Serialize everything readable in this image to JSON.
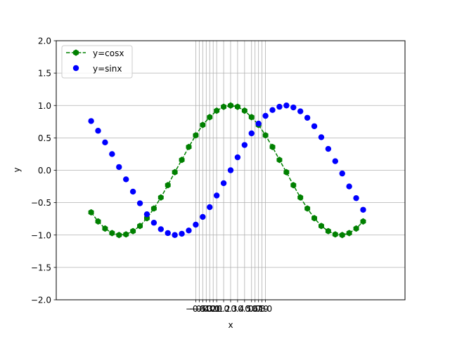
{
  "chart_data": {
    "type": "line",
    "xlabel": "x",
    "ylabel": "y",
    "xlim": [
      -2.5,
      2.5
    ],
    "ylim": [
      -2.0,
      2.0
    ],
    "yticks": [
      -2.0,
      -1.5,
      -1.0,
      -0.5,
      0.0,
      0.5,
      1.0,
      1.5,
      2.0
    ],
    "ytick_labels": [
      "−2.0",
      "−1.5",
      "−1.0",
      "−0.5",
      "0.0",
      "0.5",
      "1.0",
      "1.5",
      "2.0"
    ],
    "xticks": [
      -0.5,
      -0.45,
      -0.4,
      -0.35,
      -0.3,
      -0.25,
      -0.2,
      -0.1,
      0.0,
      0.1,
      0.2,
      0.3,
      0.35,
      0.4,
      0.45,
      0.5
    ],
    "xtick_labels": [
      "−0.5",
      "−0.4",
      "−0.3",
      "−0.2",
      "−0.1",
      "0.0",
      "0.1",
      "0.2",
      "0.3",
      "0.4",
      "0.5",
      "0.6",
      "0.7",
      "0.8",
      "0.9",
      "1.0"
    ],
    "grid": true,
    "legend_position": "top-left",
    "series": [
      {
        "name": "y=cosx",
        "style": "dashed-line-hexagon-markers",
        "color": "#008000",
        "x": [
          -2.0,
          -1.9,
          -1.8,
          -1.7,
          -1.6,
          -1.5,
          -1.4,
          -1.3,
          -1.2,
          -1.1,
          -1.0,
          -0.9,
          -0.8,
          -0.7,
          -0.6,
          -0.5,
          -0.4,
          -0.3,
          -0.2,
          -0.1,
          0.0,
          0.1,
          0.2,
          0.3,
          0.4,
          0.5,
          0.6,
          0.7,
          0.8,
          0.9,
          1.0,
          1.1,
          1.2,
          1.3,
          1.4,
          1.5,
          1.6,
          1.7,
          1.8,
          1.9
        ],
        "y": [
          -0.65,
          -0.79,
          -0.9,
          -0.97,
          -1.0,
          -0.99,
          -0.94,
          -0.86,
          -0.74,
          -0.59,
          -0.42,
          -0.23,
          -0.03,
          0.16,
          0.36,
          0.54,
          0.7,
          0.82,
          0.92,
          0.98,
          1.0,
          0.98,
          0.92,
          0.82,
          0.7,
          0.54,
          0.36,
          0.16,
          -0.03,
          -0.23,
          -0.42,
          -0.59,
          -0.74,
          -0.86,
          -0.94,
          -0.99,
          -1.0,
          -0.97,
          -0.9,
          -0.79
        ]
      },
      {
        "name": "y=sinx",
        "style": "circle-markers",
        "color": "#0000ff",
        "x": [
          -2.0,
          -1.9,
          -1.8,
          -1.7,
          -1.6,
          -1.5,
          -1.4,
          -1.3,
          -1.2,
          -1.1,
          -1.0,
          -0.9,
          -0.8,
          -0.7,
          -0.6,
          -0.5,
          -0.4,
          -0.3,
          -0.2,
          -0.1,
          0.0,
          0.1,
          0.2,
          0.3,
          0.4,
          0.5,
          0.6,
          0.7,
          0.8,
          0.9,
          1.0,
          1.1,
          1.2,
          1.3,
          1.4,
          1.5,
          1.6,
          1.7,
          1.8,
          1.9
        ],
        "y": [
          0.76,
          0.61,
          0.43,
          0.25,
          0.05,
          -0.14,
          -0.33,
          -0.51,
          -0.68,
          -0.81,
          -0.91,
          -0.97,
          -1.0,
          -0.98,
          -0.93,
          -0.84,
          -0.72,
          -0.57,
          -0.39,
          -0.2,
          0.0,
          0.2,
          0.39,
          0.57,
          0.72,
          0.84,
          0.93,
          0.98,
          1.0,
          0.97,
          0.91,
          0.81,
          0.68,
          0.51,
          0.33,
          0.14,
          -0.05,
          -0.25,
          -0.43,
          -0.61
        ]
      }
    ]
  }
}
